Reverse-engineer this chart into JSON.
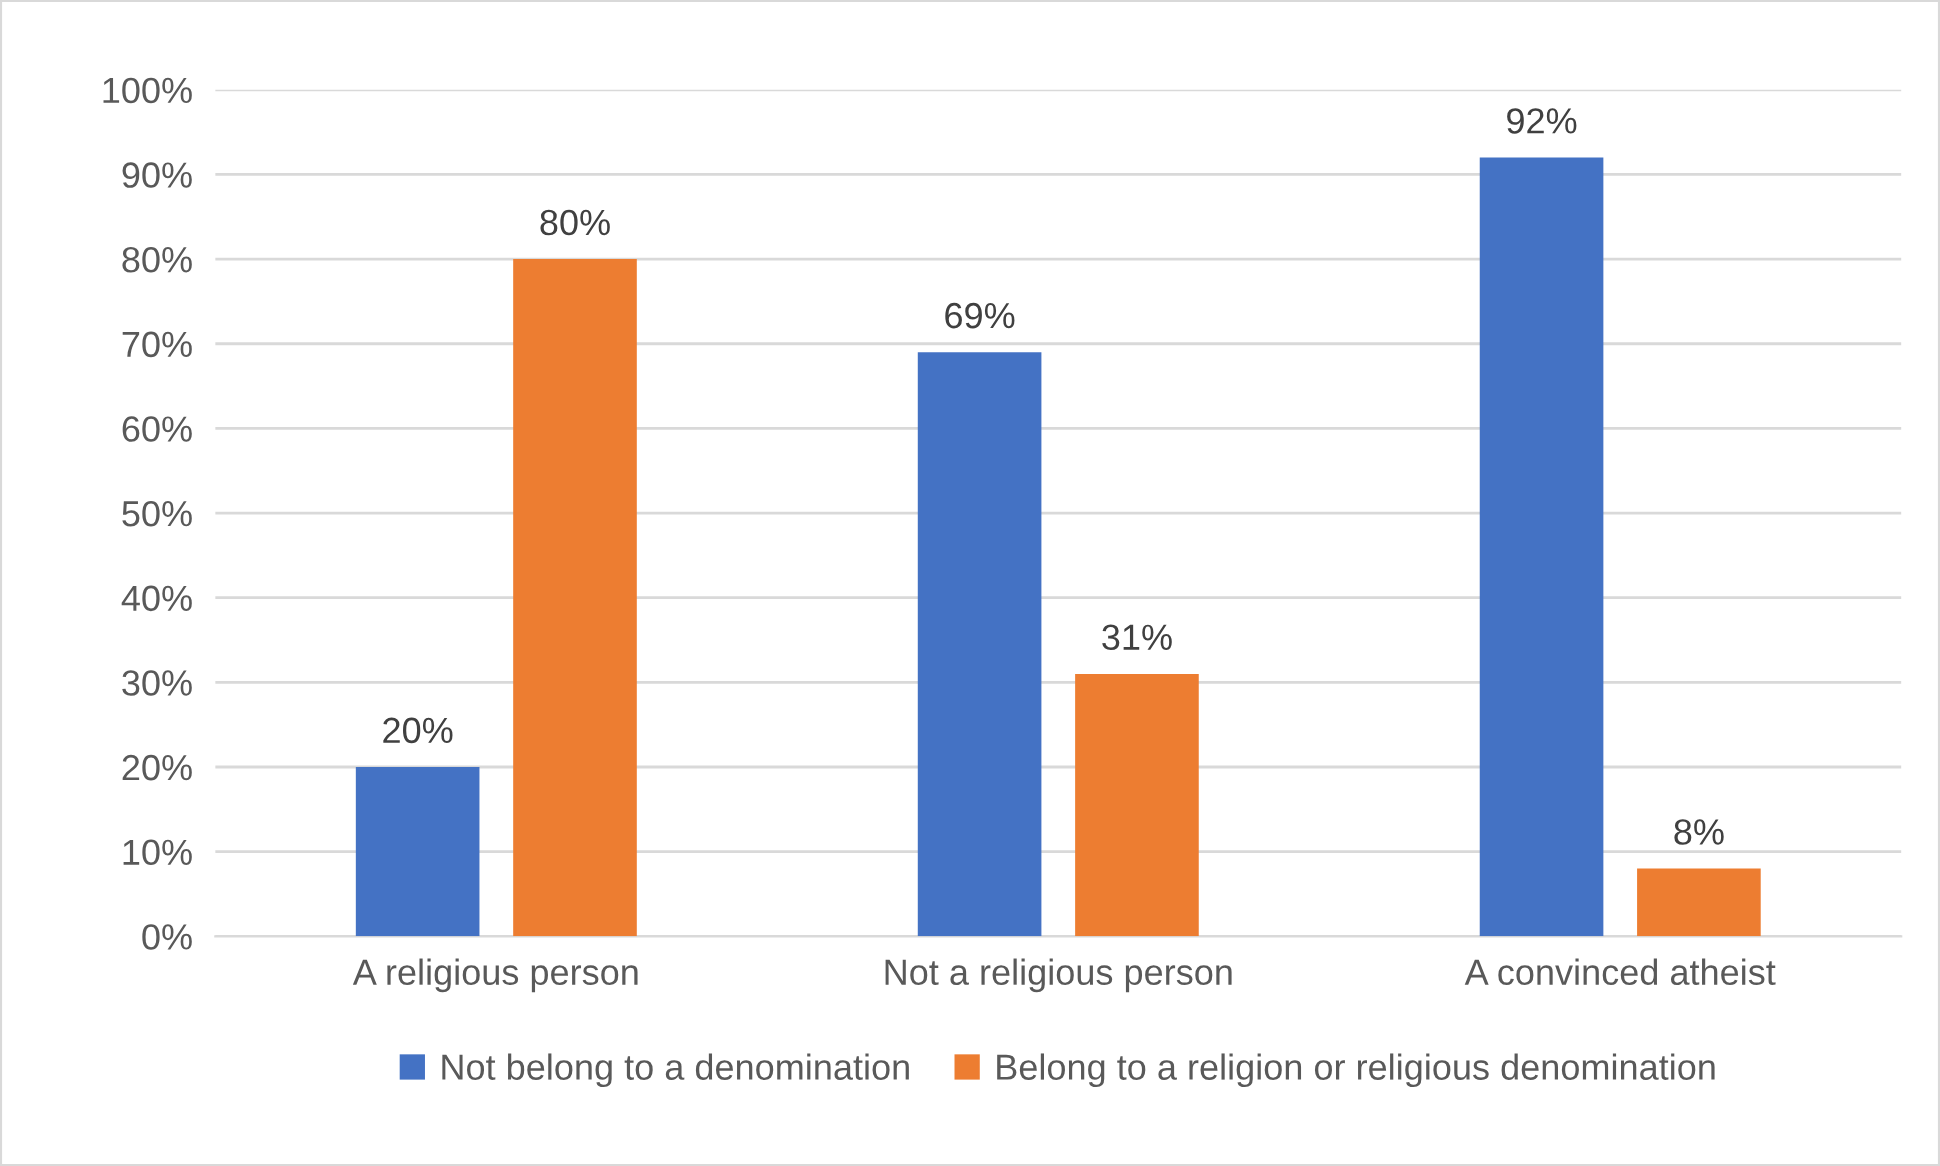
{
  "chart_data": {
    "type": "bar",
    "categories": [
      "A religious person",
      "Not a religious person",
      "A convinced atheist"
    ],
    "series": [
      {
        "name": "Not belong to a denomination",
        "color": "#4472c4",
        "values": [
          20,
          69,
          92
        ]
      },
      {
        "name": "Belong to a religion or religious denomination",
        "color": "#ed7d31",
        "values": [
          80,
          31,
          8
        ]
      }
    ],
    "value_labels": [
      [
        "20%",
        "69%",
        "92%"
      ],
      [
        "80%",
        "31%",
        "8%"
      ]
    ],
    "ylim": [
      0,
      100
    ],
    "yticks": [
      {
        "value": 0,
        "label": "0%"
      },
      {
        "value": 10,
        "label": "10%"
      },
      {
        "value": 20,
        "label": "20%"
      },
      {
        "value": 30,
        "label": "30%"
      },
      {
        "value": 40,
        "label": "40%"
      },
      {
        "value": 50,
        "label": "50%"
      },
      {
        "value": 60,
        "label": "60%"
      },
      {
        "value": 70,
        "label": "70%"
      },
      {
        "value": 80,
        "label": "80%"
      },
      {
        "value": 90,
        "label": "90%"
      },
      {
        "value": 100,
        "label": "100%"
      }
    ],
    "grid": "y",
    "legend": "bottom"
  }
}
